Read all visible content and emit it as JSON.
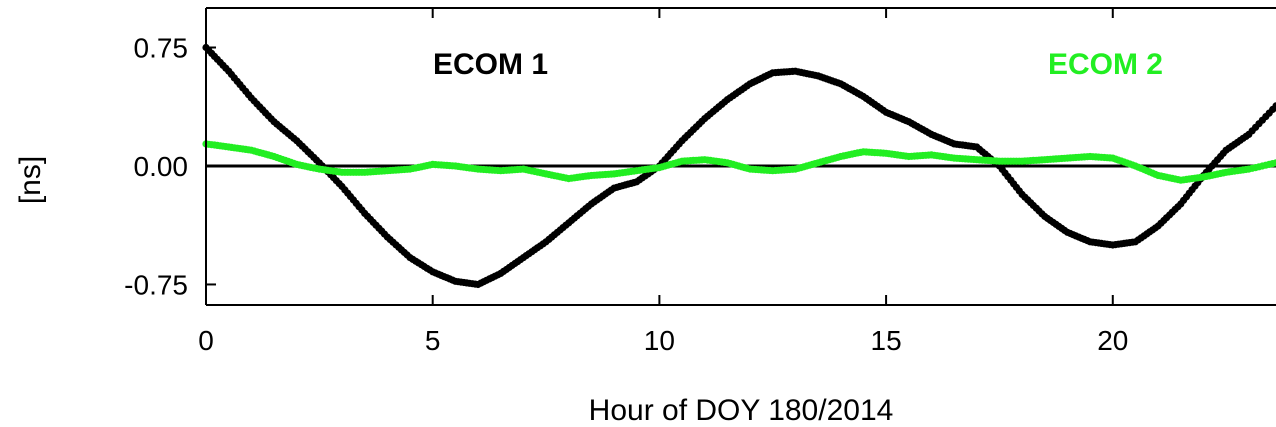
{
  "chart_data": {
    "type": "line",
    "xlabel": "Hour of DOY 180/2014",
    "ylabel": "[ns]",
    "xlim": [
      0,
      23.6
    ],
    "ylim": [
      -0.88,
      1.0
    ],
    "x_ticks": [
      "0",
      "5",
      "10",
      "15",
      "20"
    ],
    "x_tick_values": [
      0,
      5,
      10,
      15,
      20
    ],
    "y_ticks": [
      "0.75",
      "0.00",
      "-0.75"
    ],
    "y_tick_values": [
      0.75,
      0.0,
      -0.75
    ],
    "grid": false,
    "zero_line": true,
    "series": [
      {
        "name": "ECOM 1",
        "color": "#000000",
        "points": [
          [
            0,
            0.75
          ],
          [
            0.5,
            0.6
          ],
          [
            1,
            0.43
          ],
          [
            1.5,
            0.28
          ],
          [
            2,
            0.16
          ],
          [
            2.5,
            0.02
          ],
          [
            3,
            -0.13
          ],
          [
            3.5,
            -0.3
          ],
          [
            4,
            -0.45
          ],
          [
            4.5,
            -0.58
          ],
          [
            5,
            -0.67
          ],
          [
            5.5,
            -0.73
          ],
          [
            6,
            -0.75
          ],
          [
            6.5,
            -0.68
          ],
          [
            7,
            -0.58
          ],
          [
            7.5,
            -0.48
          ],
          [
            8,
            -0.36
          ],
          [
            8.5,
            -0.24
          ],
          [
            9,
            -0.14
          ],
          [
            9.5,
            -0.1
          ],
          [
            10,
            0.0
          ],
          [
            10.5,
            0.16
          ],
          [
            11,
            0.3
          ],
          [
            11.5,
            0.42
          ],
          [
            12,
            0.52
          ],
          [
            12.5,
            0.59
          ],
          [
            13,
            0.6
          ],
          [
            13.5,
            0.57
          ],
          [
            14,
            0.52
          ],
          [
            14.5,
            0.44
          ],
          [
            15,
            0.34
          ],
          [
            15.5,
            0.28
          ],
          [
            16,
            0.2
          ],
          [
            16.5,
            0.14
          ],
          [
            17,
            0.12
          ],
          [
            17.5,
            0.0
          ],
          [
            18,
            -0.18
          ],
          [
            18.5,
            -0.32
          ],
          [
            19,
            -0.42
          ],
          [
            19.5,
            -0.48
          ],
          [
            20,
            -0.5
          ],
          [
            20.5,
            -0.48
          ],
          [
            21,
            -0.38
          ],
          [
            21.5,
            -0.24
          ],
          [
            22,
            -0.06
          ],
          [
            22.5,
            0.1
          ],
          [
            23,
            0.2
          ],
          [
            23.6,
            0.38
          ]
        ]
      },
      {
        "name": "ECOM 2",
        "color": "#22ee22",
        "points": [
          [
            0,
            0.14
          ],
          [
            0.5,
            0.12
          ],
          [
            1,
            0.1
          ],
          [
            1.5,
            0.06
          ],
          [
            2,
            0.01
          ],
          [
            2.5,
            -0.02
          ],
          [
            3,
            -0.04
          ],
          [
            3.5,
            -0.04
          ],
          [
            4,
            -0.03
          ],
          [
            4.5,
            -0.02
          ],
          [
            5,
            0.01
          ],
          [
            5.5,
            0.0
          ],
          [
            6,
            -0.02
          ],
          [
            6.5,
            -0.03
          ],
          [
            7,
            -0.02
          ],
          [
            7.5,
            -0.05
          ],
          [
            8,
            -0.08
          ],
          [
            8.5,
            -0.06
          ],
          [
            9,
            -0.05
          ],
          [
            9.5,
            -0.03
          ],
          [
            10,
            -0.01
          ],
          [
            10.5,
            0.03
          ],
          [
            11,
            0.04
          ],
          [
            11.5,
            0.02
          ],
          [
            12,
            -0.02
          ],
          [
            12.5,
            -0.03
          ],
          [
            13,
            -0.02
          ],
          [
            13.5,
            0.02
          ],
          [
            14,
            0.06
          ],
          [
            14.5,
            0.09
          ],
          [
            15,
            0.08
          ],
          [
            15.5,
            0.06
          ],
          [
            16,
            0.07
          ],
          [
            16.5,
            0.05
          ],
          [
            17,
            0.04
          ],
          [
            17.5,
            0.03
          ],
          [
            18,
            0.03
          ],
          [
            18.5,
            0.04
          ],
          [
            19,
            0.05
          ],
          [
            19.5,
            0.06
          ],
          [
            20,
            0.05
          ],
          [
            20.5,
            0.0
          ],
          [
            21,
            -0.06
          ],
          [
            21.5,
            -0.09
          ],
          [
            22,
            -0.07
          ],
          [
            22.5,
            -0.04
          ],
          [
            23,
            -0.02
          ],
          [
            23.6,
            0.02
          ]
        ]
      }
    ],
    "legend_labels": [
      {
        "name": "ECOM 1",
        "color": "#000000",
        "position": "top-left"
      },
      {
        "name": "ECOM 2",
        "color": "#22ee22",
        "position": "top-right"
      }
    ]
  }
}
